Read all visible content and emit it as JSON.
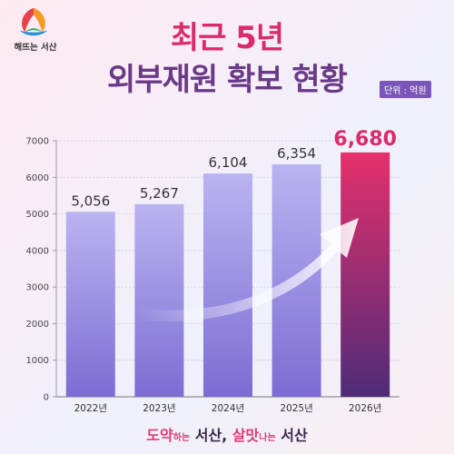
{
  "logo": {
    "text": "해뜨는 서산",
    "icon": "seosan-city-logo"
  },
  "header": {
    "title_line1": "최근 5년",
    "title_line2": "외부재원 확보 현황",
    "unit": "단위 : 억원"
  },
  "footer": {
    "part1": "도약",
    "part2": "하는",
    "part3": "서산,",
    "part4": "살맛",
    "part5": "나는",
    "part6": "서산"
  },
  "colors": {
    "title_pink": "#d92c6b",
    "title_purple": "#6a3a86",
    "bar": "#9f95e6",
    "highlight_top": "#e5306c",
    "highlight_bottom": "#4f2b78"
  },
  "chart_data": {
    "type": "bar",
    "categories": [
      "2022년",
      "2023년",
      "2024년",
      "2025년",
      "2026년"
    ],
    "values": [
      5056,
      5267,
      6104,
      6354,
      6680
    ],
    "value_labels": [
      "5,056",
      "5,267",
      "6,104",
      "6,354",
      "6,680"
    ],
    "highlight_index": 4,
    "title": "최근 5년 외부재원 확보 현황",
    "ylabel": "",
    "xlabel": "",
    "unit": "단위 : 억원",
    "ylim": [
      0,
      7000
    ],
    "yticks": [
      0,
      1000,
      2000,
      3000,
      4000,
      5000,
      6000,
      7000
    ],
    "grid": true
  }
}
